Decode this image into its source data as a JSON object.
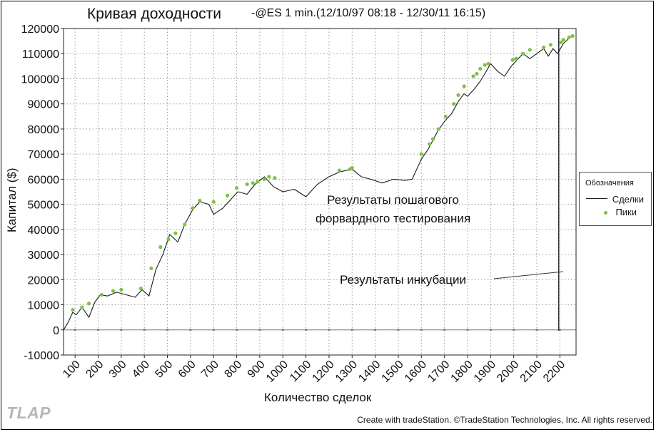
{
  "chart_data": {
    "type": "line",
    "title": "Кривая доходности",
    "subtitle": "-@ES 1 min.(12/10/97 08:18 - 12/30/11 16:15)",
    "xlabel": "Количество сделок",
    "ylabel": "Капитал ($)",
    "xlim": [
      50,
      2270
    ],
    "ylim": [
      -10000,
      120000
    ],
    "x_ticks": [
      "100",
      "200",
      "300",
      "400",
      "500",
      "600",
      "700",
      "800",
      "900",
      "1000",
      "1100",
      "1200",
      "1300",
      "1400",
      "1500",
      "1600",
      "1700",
      "1800",
      "1900",
      "2000",
      "2100",
      "2200"
    ],
    "y_ticks": [
      "120000",
      "110000",
      "100000",
      "90000",
      "80000",
      "70000",
      "60000",
      "50000",
      "40000",
      "30000",
      "20000",
      "10000",
      "0",
      "-10000"
    ],
    "grid": true,
    "legend_position": "right",
    "legend_title": "Обозначения",
    "series": [
      {
        "name": "Сделки",
        "color": "#1a1a1a",
        "x": [
          50,
          70,
          90,
          105,
          130,
          160,
          185,
          210,
          240,
          280,
          320,
          360,
          390,
          420,
          450,
          480,
          510,
          545,
          575,
          610,
          640,
          680,
          700,
          740,
          775,
          805,
          845,
          880,
          920,
          960,
          1000,
          1050,
          1100,
          1150,
          1200,
          1250,
          1300,
          1340,
          1380,
          1430,
          1480,
          1530,
          1560,
          1600,
          1630,
          1670,
          1700,
          1730,
          1760,
          1785,
          1800,
          1830,
          1855,
          1875,
          1900,
          1930,
          1960,
          1990,
          2010,
          2040,
          2070,
          2100,
          2130,
          2150,
          2170,
          2190,
          2215,
          2250
        ],
        "y": [
          0,
          3000,
          7000,
          6000,
          9000,
          5000,
          11000,
          14000,
          13500,
          15000,
          14000,
          13000,
          16000,
          13500,
          24000,
          30000,
          38000,
          35000,
          42000,
          48000,
          51000,
          50000,
          46000,
          48500,
          52000,
          55000,
          54000,
          58000,
          61000,
          57000,
          55000,
          56000,
          53000,
          58000,
          61000,
          63000,
          64000,
          61000,
          60000,
          58500,
          60000,
          59500,
          60000,
          68000,
          72000,
          79000,
          83000,
          86000,
          91000,
          94000,
          93000,
          96000,
          99000,
          102000,
          106000,
          103000,
          101000,
          105000,
          107000,
          110000,
          108000,
          110000,
          112000,
          109000,
          112000,
          110000,
          114000,
          117000
        ]
      },
      {
        "name": "Пики",
        "color": "#7dc243",
        "x": [
          90,
          130,
          160,
          215,
          265,
          300,
          385,
          430,
          470,
          505,
          535,
          575,
          610,
          640,
          700,
          760,
          800,
          845,
          870,
          890,
          920,
          940,
          965,
          1245,
          1290,
          1300,
          1600,
          1635,
          1650,
          1675,
          1705,
          1740,
          1760,
          1785,
          1825,
          1840,
          1855,
          1875,
          1890,
          1995,
          2010,
          2040,
          2070,
          2130,
          2160,
          2205,
          2215,
          2240,
          2255
        ],
        "y": [
          8000,
          9000,
          10500,
          14000,
          15500,
          16000,
          16500,
          24500,
          33000,
          36000,
          38500,
          42000,
          48500,
          51500,
          51000,
          53500,
          56500,
          58000,
          58500,
          59000,
          60000,
          61000,
          60500,
          63500,
          64000,
          64500,
          70000,
          74000,
          76000,
          80000,
          85000,
          90000,
          93500,
          97000,
          101000,
          102000,
          104000,
          105500,
          106000,
          107500,
          108000,
          110000,
          111500,
          112500,
          113500,
          114500,
          115500,
          116500,
          117000
        ]
      }
    ],
    "annotations": [
      {
        "text_line1": "Результаты пошагового",
        "text_line2": "форвардного тестирования"
      },
      {
        "text": "Результаты инкубации"
      }
    ],
    "divider_x": 2195
  },
  "footer": {
    "watermark": "TLAP",
    "credit": "Create with tradeStation. ©TradeStation Technologies, Inc. All rights reserved."
  }
}
